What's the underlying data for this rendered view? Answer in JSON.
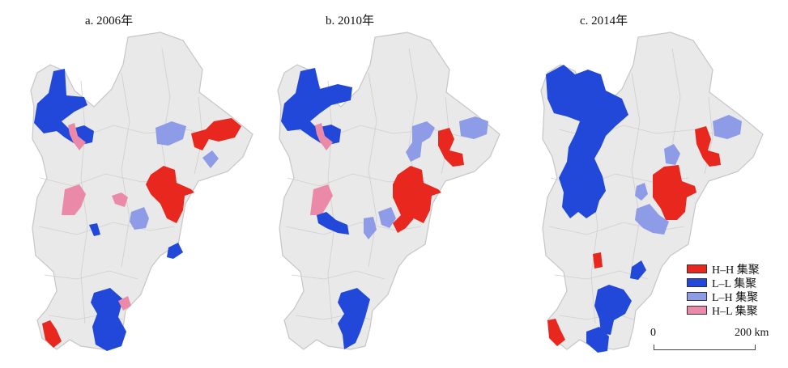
{
  "panels": [
    {
      "title": "a. 2006年"
    },
    {
      "title": "b. 2010年"
    },
    {
      "title": "c. 2014年"
    }
  ],
  "legend": [
    {
      "label": "H–H 集聚",
      "color": "#e8271f"
    },
    {
      "label": "L–L 集聚",
      "color": "#2148d8"
    },
    {
      "label": "L–H 集聚",
      "color": "#8e9be6"
    },
    {
      "label": "H–L 集聚",
      "color": "#ea8aa8"
    }
  ],
  "scale_bar": {
    "start": "0",
    "end": "200 km"
  },
  "colors": {
    "background": "#ffffff",
    "region_fill": "#e9e9e9",
    "region_border": "#c6c6c6"
  }
}
